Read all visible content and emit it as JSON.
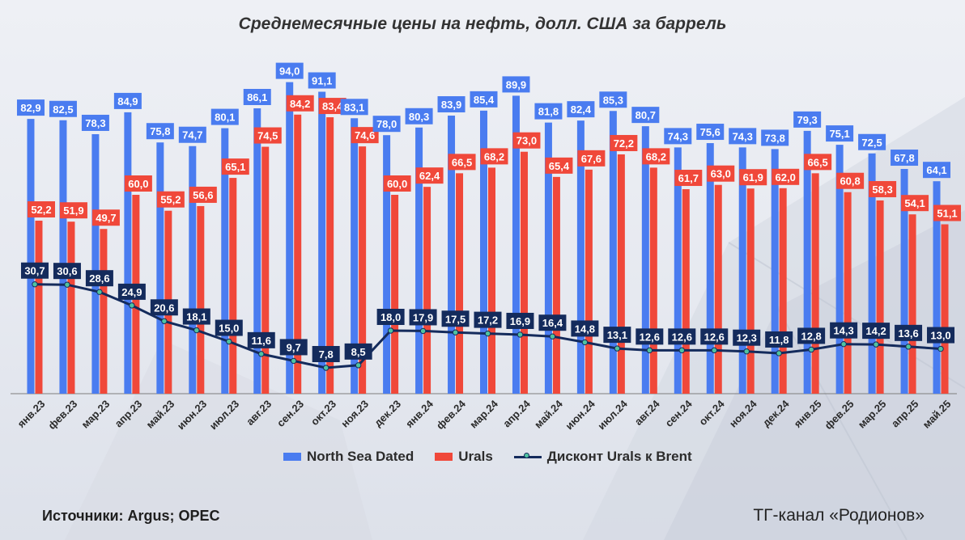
{
  "title": "Среднемесячные цены на нефть, долл. США за баррель",
  "legend": {
    "brent": "North Sea Dated",
    "urals": "Urals",
    "discount": "Дисконт Urals к Brent"
  },
  "colors": {
    "brent": "#4a7cf0",
    "urals": "#f0483a",
    "discount": "#142b5c",
    "marker": "#4fc3a1"
  },
  "source": "Источники: Argus; OPEC",
  "channel": "ТГ-канал «Родионов»",
  "chart_data": {
    "type": "bar",
    "categories": [
      "янв.23",
      "фев.23",
      "мар.23",
      "апр.23",
      "май.23",
      "июн.23",
      "июл.23",
      "авг.23",
      "сен.23",
      "окт.23",
      "ноя.23",
      "дек.23",
      "янв.24",
      "фев.24",
      "мар.24",
      "апр.24",
      "май.24",
      "июн.24",
      "июл.24",
      "авг.24",
      "сен.24",
      "окт.24",
      "ноя.24",
      "дек.24",
      "янв.25",
      "фев.25",
      "мар.25",
      "апр.25",
      "май.25"
    ],
    "series": [
      {
        "name": "North Sea Dated",
        "kind": "bar",
        "values": [
          82.9,
          82.5,
          78.3,
          84.9,
          75.8,
          74.7,
          80.1,
          86.1,
          94.0,
          91.1,
          83.1,
          78.0,
          80.3,
          83.9,
          85.4,
          89.9,
          81.8,
          82.4,
          85.3,
          80.7,
          74.3,
          75.6,
          74.3,
          73.8,
          79.3,
          75.1,
          72.5,
          67.8,
          64.1
        ]
      },
      {
        "name": "Urals",
        "kind": "bar",
        "values": [
          52.2,
          51.9,
          49.7,
          60.0,
          55.2,
          56.6,
          65.1,
          74.5,
          84.2,
          83.4,
          74.6,
          60.0,
          62.4,
          66.5,
          68.2,
          73.0,
          65.4,
          67.6,
          72.2,
          68.2,
          61.7,
          63.0,
          61.9,
          62.0,
          66.5,
          60.8,
          58.3,
          54.1,
          51.1
        ]
      },
      {
        "name": "Дисконт Urals к Brent",
        "kind": "line",
        "values": [
          30.7,
          30.6,
          28.6,
          24.9,
          20.6,
          18.1,
          15.0,
          11.6,
          9.7,
          7.8,
          8.5,
          18.0,
          17.9,
          17.5,
          17.2,
          16.9,
          16.4,
          14.8,
          13.1,
          12.6,
          12.6,
          12.6,
          12.3,
          11.8,
          12.8,
          14.3,
          14.2,
          13.6,
          13.0
        ]
      }
    ],
    "ylim": [
      0,
      100
    ],
    "grid": false,
    "legend_position": "bottom"
  }
}
